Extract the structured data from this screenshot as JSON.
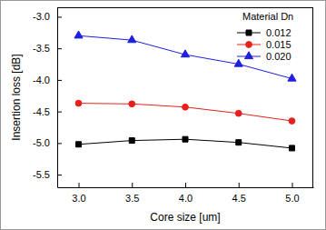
{
  "chart_data": {
    "type": "line",
    "x_label": "Core size [um]",
    "y_label": "Insertion loss [dB]",
    "legend_title": "Material Dn",
    "legend": "upper right",
    "x": [
      3.0,
      3.5,
      4.0,
      4.5,
      5.0
    ],
    "series": [
      {
        "name": "0.012",
        "color": "#000000",
        "marker": "square",
        "line_style": "solid",
        "values": [
          -5.02,
          -4.96,
          -4.94,
          -4.99,
          -5.08
        ]
      },
      {
        "name": "0.015",
        "color": "#e8201c",
        "marker": "circle",
        "line_style": "solid",
        "values": [
          -4.37,
          -4.38,
          -4.43,
          -4.53,
          -4.65
        ]
      },
      {
        "name": "0.020",
        "color": "#1f1fe0",
        "marker": "triangle",
        "line_style": "solid",
        "values": [
          -3.3,
          -3.37,
          -3.6,
          -3.75,
          -3.98
        ]
      }
    ],
    "xlim": [
      2.8,
      5.2
    ],
    "xticks": [
      {
        "value": 3.0,
        "label": "3.0"
      },
      3.5,
      {
        "value": 4.0,
        "label": "4.0"
      },
      4.5,
      {
        "value": 5.0,
        "label": "5.0"
      }
    ],
    "ylim": [
      -5.7,
      -2.85
    ],
    "yticks": [
      {
        "value": -3.0,
        "label": "-3.0"
      },
      -3.5,
      {
        "value": -4.0,
        "label": "-4.0"
      },
      -4.5,
      {
        "value": -5.0,
        "label": "-5.0"
      },
      -5.5
    ],
    "grid": false
  }
}
